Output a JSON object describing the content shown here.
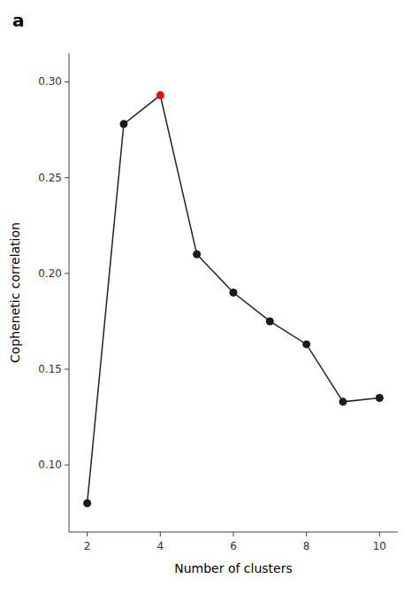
{
  "chart_data": {
    "type": "line",
    "title": "a",
    "xlabel": "Number of clusters",
    "ylabel": "Cophenetic correlation",
    "x": [
      2,
      3,
      4,
      5,
      6,
      7,
      8,
      9,
      10
    ],
    "series": [
      {
        "color": "#222222",
        "marker": "circle",
        "colors": [
          "#1a1a1a",
          "#1a1a1a",
          "#FF0000",
          "#1a1a1a",
          "#1a1a1a",
          "#1a1a1a",
          "#1a1a1a",
          "#1a1a1a",
          "#1a1a1a"
        ],
        "values": [
          0.08,
          0.278,
          0.293,
          0.21,
          0.19,
          0.175,
          0.163,
          0.133,
          0.135
        ]
      }
    ],
    "xlim": [
      1.5,
      10.5
    ],
    "ylim": [
      0.065,
      0.315
    ],
    "xticks": [
      2,
      4,
      6,
      8,
      10
    ],
    "yticks": [
      {
        "value": 0.1,
        "label": "0.10"
      },
      0.15,
      {
        "value": 0.2,
        "label": "0.20"
      },
      0.25,
      {
        "value": 0.3,
        "label": "0.30"
      }
    ],
    "grid": false
  }
}
